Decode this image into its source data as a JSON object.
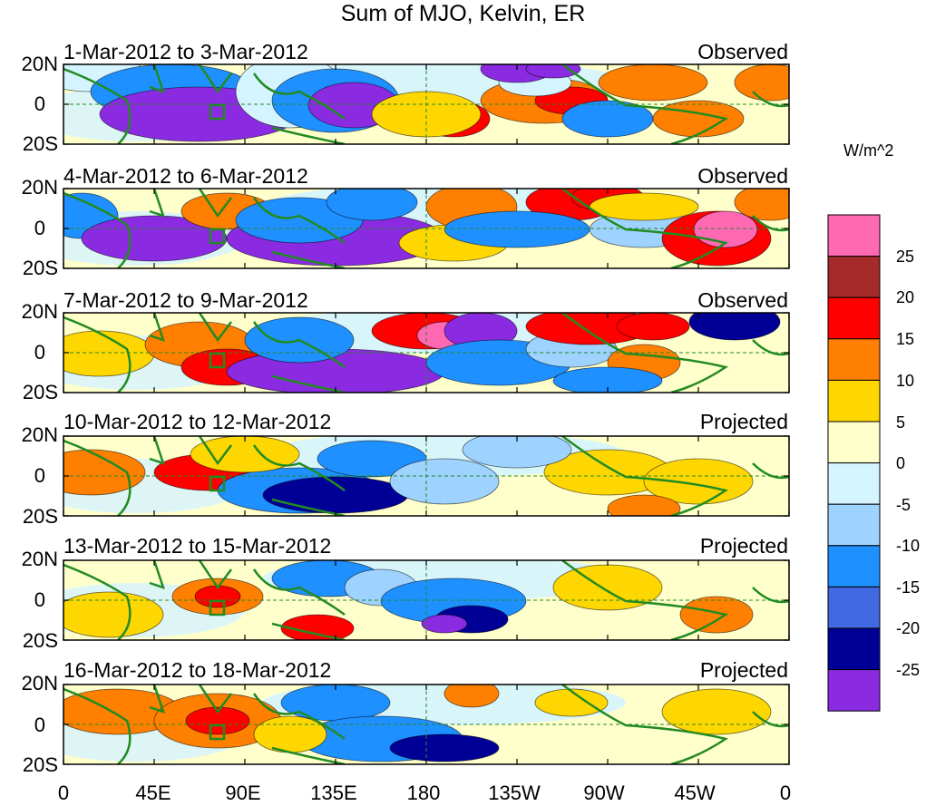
{
  "title": "Sum of MJO, Kelvin, ER",
  "units": "W/m^2",
  "lat_labels": [
    "20N",
    "0",
    "20S"
  ],
  "lon_labels": [
    "0",
    "45E",
    "90E",
    "135E",
    "180",
    "135W",
    "90W",
    "45W",
    "0"
  ],
  "colorbar": {
    "levels": [
      "25",
      "20",
      "15",
      "10",
      "5",
      "0",
      "-5",
      "-10",
      "-15",
      "-20",
      "-25"
    ],
    "colors": [
      "#ff69b4",
      "#a52a2a",
      "#ff0000",
      "#ff7f00",
      "#ffd700",
      "#ffffcc",
      "#d4f4ff",
      "#9ed2ff",
      "#1e90ff",
      "#4169e1",
      "#000096",
      "#8a2be2"
    ]
  },
  "panels": [
    {
      "date": "1-Mar-2012 to 3-Mar-2012",
      "status": "Observed"
    },
    {
      "date": "4-Mar-2012 to 6-Mar-2012",
      "status": "Observed"
    },
    {
      "date": "7-Mar-2012 to 9-Mar-2012",
      "status": "Observed"
    },
    {
      "date": "10-Mar-2012 to 12-Mar-2012",
      "status": "Projected"
    },
    {
      "date": "13-Mar-2012 to 15-Mar-2012",
      "status": "Projected"
    },
    {
      "date": "16-Mar-2012 to 18-Mar-2012",
      "status": "Projected"
    }
  ]
}
